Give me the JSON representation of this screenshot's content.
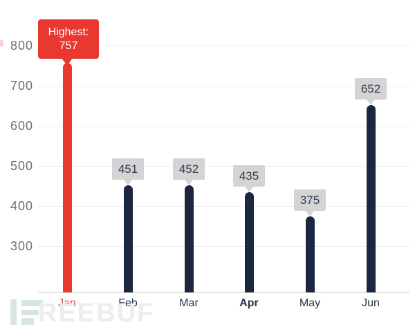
{
  "chart_data": {
    "type": "bar",
    "title": "",
    "categories": [
      "Jan",
      "Feb",
      "Mar",
      "Apr",
      "May",
      "Jun"
    ],
    "values": [
      757,
      451,
      452,
      435,
      375,
      652
    ],
    "value_labels": [
      "757",
      "451",
      "452",
      "435",
      "375",
      "652"
    ],
    "highlight": {
      "category": "Jan",
      "callout_prefix": "Highest:",
      "callout_value": "757"
    },
    "bold_category": "Apr",
    "yaxis": {
      "ticks": [
        800,
        700,
        600,
        500,
        400,
        300
      ],
      "visible_range": [
        300,
        800
      ]
    },
    "grid": true,
    "legend": null,
    "colors": {
      "bar": "#1b2740",
      "highlight_bar": "#e8382f",
      "callout_bg": "#d4d4d4",
      "callout_text": "#333e52",
      "highlight_callout_bg": "#e8382f",
      "highlight_callout_text": "#ffffff",
      "axis_label": "#6f6f6f",
      "month_label": "#2a3346",
      "highlight_month_label": "#dc4840",
      "gridline": "#ededed",
      "axis_line": "#e4e4e4"
    }
  },
  "watermark": {
    "text": "REEBUF",
    "icon": "freebuf-logo",
    "icon_color": "#d8e7de",
    "text_color": "#ededed"
  }
}
